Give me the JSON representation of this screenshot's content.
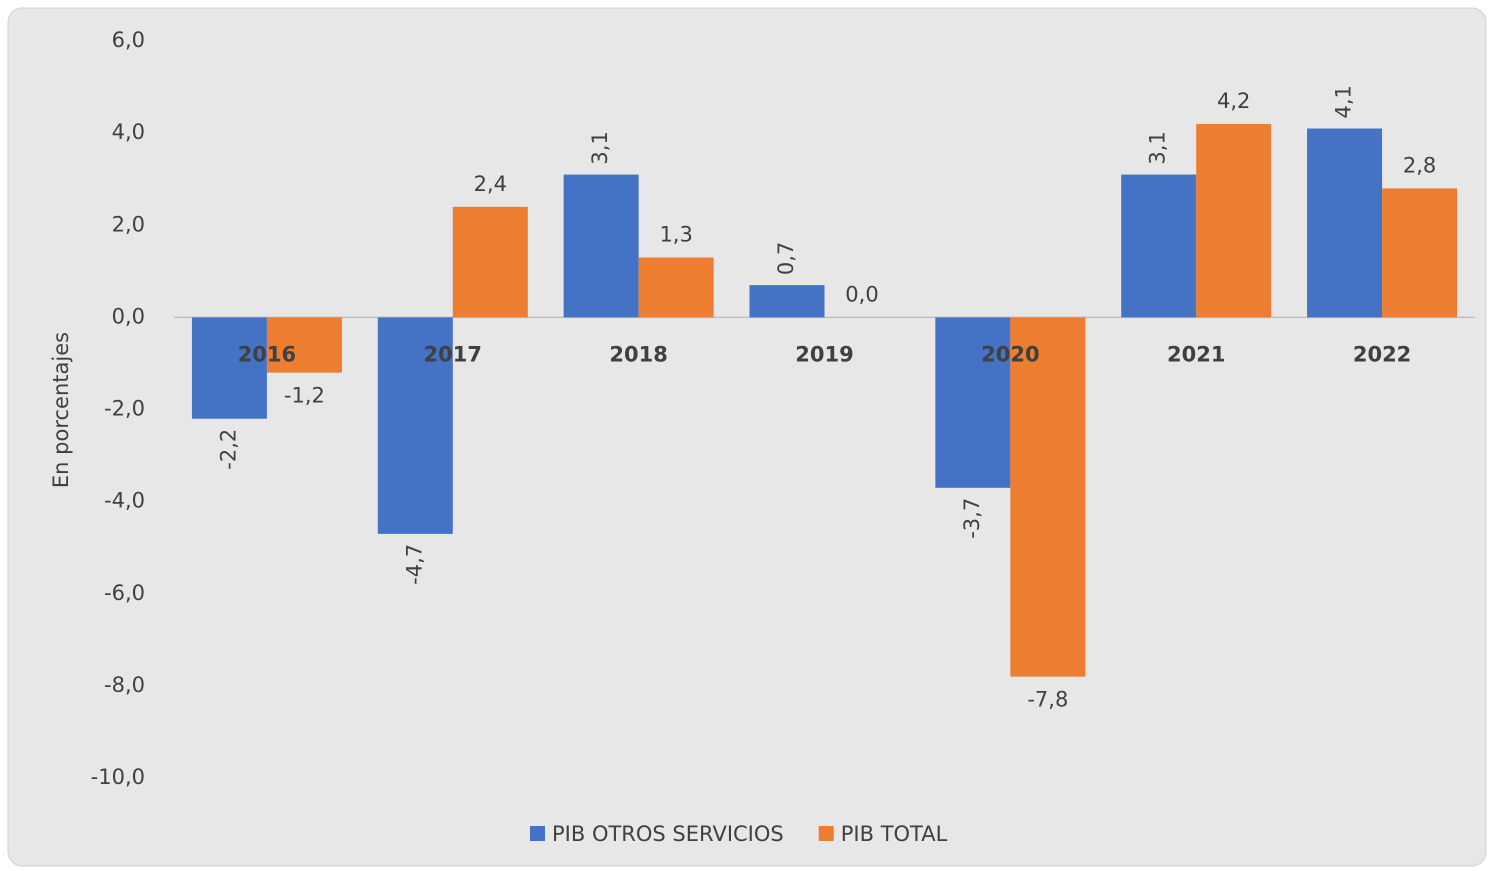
{
  "chart_data": {
    "type": "bar",
    "y_label": "En porcentajes",
    "categories": [
      "2016",
      "2017",
      "2018",
      "2019",
      "2020",
      "2021",
      "2022"
    ],
    "series": [
      {
        "name": "PIB OTROS SERVICIOS",
        "color": "#4472c4",
        "values": [
          -2.2,
          -4.7,
          3.1,
          0.7,
          -3.7,
          3.1,
          4.1
        ],
        "value_labels": [
          "-2,2",
          "-4,7",
          "3,1",
          "0,7",
          "-3,7",
          "3,1",
          "4,1"
        ]
      },
      {
        "name": "PIB TOTAL",
        "color": "#ed7d31",
        "values": [
          -1.2,
          2.4,
          1.3,
          0.0,
          -7.8,
          4.2,
          2.8
        ],
        "value_labels": [
          "-1,2",
          "2,4",
          "1,3",
          "0,0",
          "-7,8",
          "4,2",
          "2,8"
        ]
      }
    ],
    "ylim": [
      -10,
      6
    ],
    "yticks": [
      {
        "value": 6,
        "label": "6,0"
      },
      {
        "value": 4,
        "label": "4,0"
      },
      {
        "value": 2,
        "label": "2,0"
      },
      {
        "value": 0,
        "label": "0,0"
      },
      {
        "value": -2,
        "label": "-2,0"
      },
      {
        "value": -4,
        "label": "-4,0"
      },
      {
        "value": -6,
        "label": "-6,0"
      },
      {
        "value": -8,
        "label": "-8,0"
      },
      {
        "value": -10,
        "label": "-10,0"
      }
    ],
    "grid": false,
    "legend": "bottom"
  }
}
